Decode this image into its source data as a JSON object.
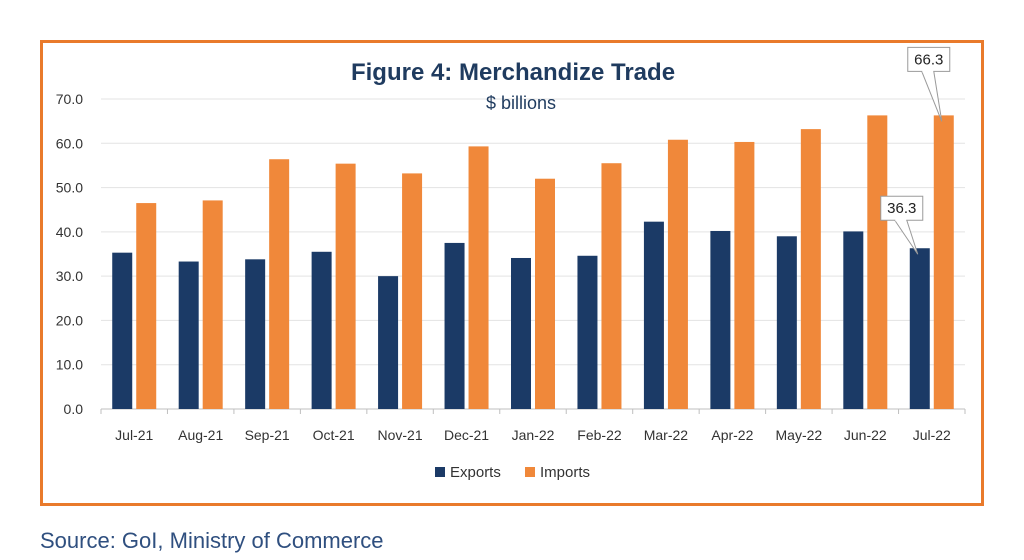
{
  "chart_data": {
    "type": "bar",
    "title": "Figure 4: Merchandize Trade",
    "subtitle": "$ billions",
    "categories": [
      "Jul-21",
      "Aug-21",
      "Sep-21",
      "Oct-21",
      "Nov-21",
      "Dec-21",
      "Jan-22",
      "Feb-22",
      "Mar-22",
      "Apr-22",
      "May-22",
      "Jun-22",
      "Jul-22"
    ],
    "series": [
      {
        "name": "Exports",
        "color": "#1b3a66",
        "values": [
          35.3,
          33.3,
          33.8,
          35.5,
          30.0,
          37.5,
          34.1,
          34.6,
          42.3,
          40.2,
          39.0,
          40.1,
          36.3
        ]
      },
      {
        "name": "Imports",
        "color": "#f0883a",
        "values": [
          46.5,
          47.1,
          56.4,
          55.4,
          53.2,
          59.3,
          52.0,
          55.5,
          60.8,
          60.3,
          63.2,
          66.3,
          66.3
        ]
      }
    ],
    "ylim": [
      0,
      70
    ],
    "yticks": [
      "0.0",
      "10.0",
      "20.0",
      "30.0",
      "40.0",
      "50.0",
      "60.0",
      "70.0"
    ],
    "grid": true,
    "legend_position": "bottom",
    "annotations": [
      {
        "series": "Imports",
        "category": "Jul-22",
        "label": "66.3"
      },
      {
        "series": "Exports",
        "category": "Jul-22",
        "label": "36.3"
      }
    ]
  },
  "source": "Source: GoI, Ministry of Commerce"
}
